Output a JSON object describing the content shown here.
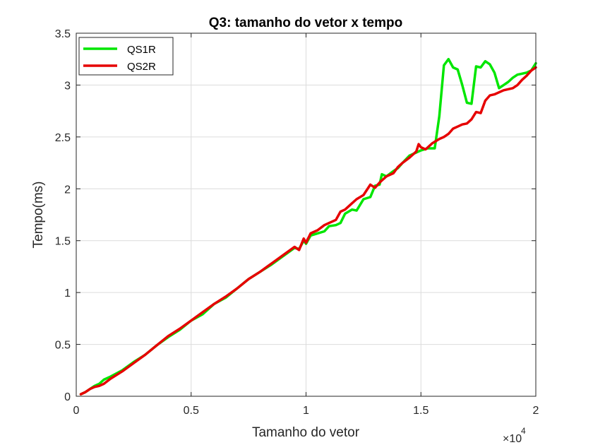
{
  "chart_data": {
    "type": "line",
    "title": "Q3: tamanho do vetor x tempo",
    "xlabel": "Tamanho do vetor",
    "ylabel": "Tempo(ms)",
    "xlim": [
      0,
      20000
    ],
    "ylim": [
      0,
      3.5
    ],
    "x_ticks": [
      0,
      5000,
      10000,
      15000,
      20000
    ],
    "x_tick_labels": [
      "0",
      "0.5",
      "1",
      "1.5",
      "2"
    ],
    "x_exponent_label": "×10",
    "x_exponent_power": "4",
    "y_ticks": [
      0,
      0.5,
      1,
      1.5,
      2,
      2.5,
      3,
      3.5
    ],
    "y_tick_labels": [
      "0",
      "0.5",
      "1",
      "1.5",
      "2",
      "2.5",
      "3",
      "3.5"
    ],
    "grid": true,
    "legend_position": "top-left",
    "series": [
      {
        "name": "QS1R",
        "color": "#00e600",
        "x": [
          200,
          400,
          600,
          800,
          1000,
          1200,
          1500,
          2000,
          2500,
          3000,
          3500,
          4000,
          4500,
          5000,
          5500,
          6000,
          6500,
          7000,
          7500,
          8000,
          8500,
          9000,
          9500,
          9700,
          9900,
          10000,
          10200,
          10500,
          10800,
          11000,
          11300,
          11500,
          11700,
          12000,
          12200,
          12500,
          12800,
          13000,
          13200,
          13300,
          13500,
          13800,
          14000,
          14200,
          14500,
          15000,
          15300,
          15600,
          15800,
          16000,
          16200,
          16400,
          16600,
          16800,
          17000,
          17200,
          17400,
          17600,
          17800,
          18000,
          18200,
          18400,
          18600,
          18800,
          19000,
          19200,
          19400,
          19600,
          19800,
          20000
        ],
        "y": [
          0.02,
          0.04,
          0.07,
          0.1,
          0.12,
          0.16,
          0.19,
          0.25,
          0.33,
          0.4,
          0.49,
          0.57,
          0.64,
          0.73,
          0.79,
          0.89,
          0.95,
          1.04,
          1.13,
          1.2,
          1.27,
          1.35,
          1.43,
          1.42,
          1.5,
          1.47,
          1.55,
          1.57,
          1.59,
          1.64,
          1.65,
          1.67,
          1.76,
          1.8,
          1.79,
          1.9,
          1.92,
          2.03,
          2.04,
          2.14,
          2.12,
          2.17,
          2.2,
          2.25,
          2.32,
          2.37,
          2.39,
          2.39,
          2.7,
          3.19,
          3.25,
          3.17,
          3.15,
          3.0,
          2.83,
          2.82,
          3.18,
          3.17,
          3.23,
          3.2,
          3.12,
          2.97,
          3.0,
          3.03,
          3.07,
          3.1,
          3.11,
          3.12,
          3.14,
          3.21
        ]
      },
      {
        "name": "QS2R",
        "color": "#e60000",
        "x": [
          200,
          400,
          600,
          800,
          1000,
          1200,
          1500,
          2000,
          2500,
          3000,
          3500,
          4000,
          4500,
          5000,
          5500,
          6000,
          6500,
          7000,
          7500,
          8000,
          8500,
          9000,
          9500,
          9700,
          9900,
          10000,
          10200,
          10500,
          10800,
          11000,
          11300,
          11500,
          11700,
          12000,
          12200,
          12500,
          12800,
          13000,
          13200,
          13300,
          13500,
          13800,
          14000,
          14200,
          14500,
          14800,
          14900,
          15000,
          15200,
          15500,
          15800,
          16000,
          16200,
          16400,
          16600,
          16800,
          17000,
          17200,
          17400,
          17600,
          17800,
          18000,
          18200,
          18400,
          18600,
          18800,
          19000,
          19200,
          19400,
          19600,
          19800,
          20000
        ],
        "y": [
          0.02,
          0.04,
          0.07,
          0.09,
          0.1,
          0.12,
          0.17,
          0.24,
          0.32,
          0.4,
          0.49,
          0.58,
          0.65,
          0.73,
          0.81,
          0.89,
          0.96,
          1.04,
          1.13,
          1.2,
          1.28,
          1.36,
          1.44,
          1.41,
          1.52,
          1.48,
          1.57,
          1.6,
          1.65,
          1.67,
          1.7,
          1.78,
          1.8,
          1.86,
          1.9,
          1.94,
          2.04,
          2.01,
          2.06,
          2.08,
          2.12,
          2.15,
          2.21,
          2.25,
          2.3,
          2.36,
          2.43,
          2.4,
          2.38,
          2.44,
          2.48,
          2.5,
          2.53,
          2.58,
          2.6,
          2.62,
          2.63,
          2.67,
          2.74,
          2.73,
          2.85,
          2.9,
          2.91,
          2.93,
          2.95,
          2.96,
          2.97,
          3.0,
          3.05,
          3.09,
          3.14,
          3.17
        ]
      }
    ]
  }
}
